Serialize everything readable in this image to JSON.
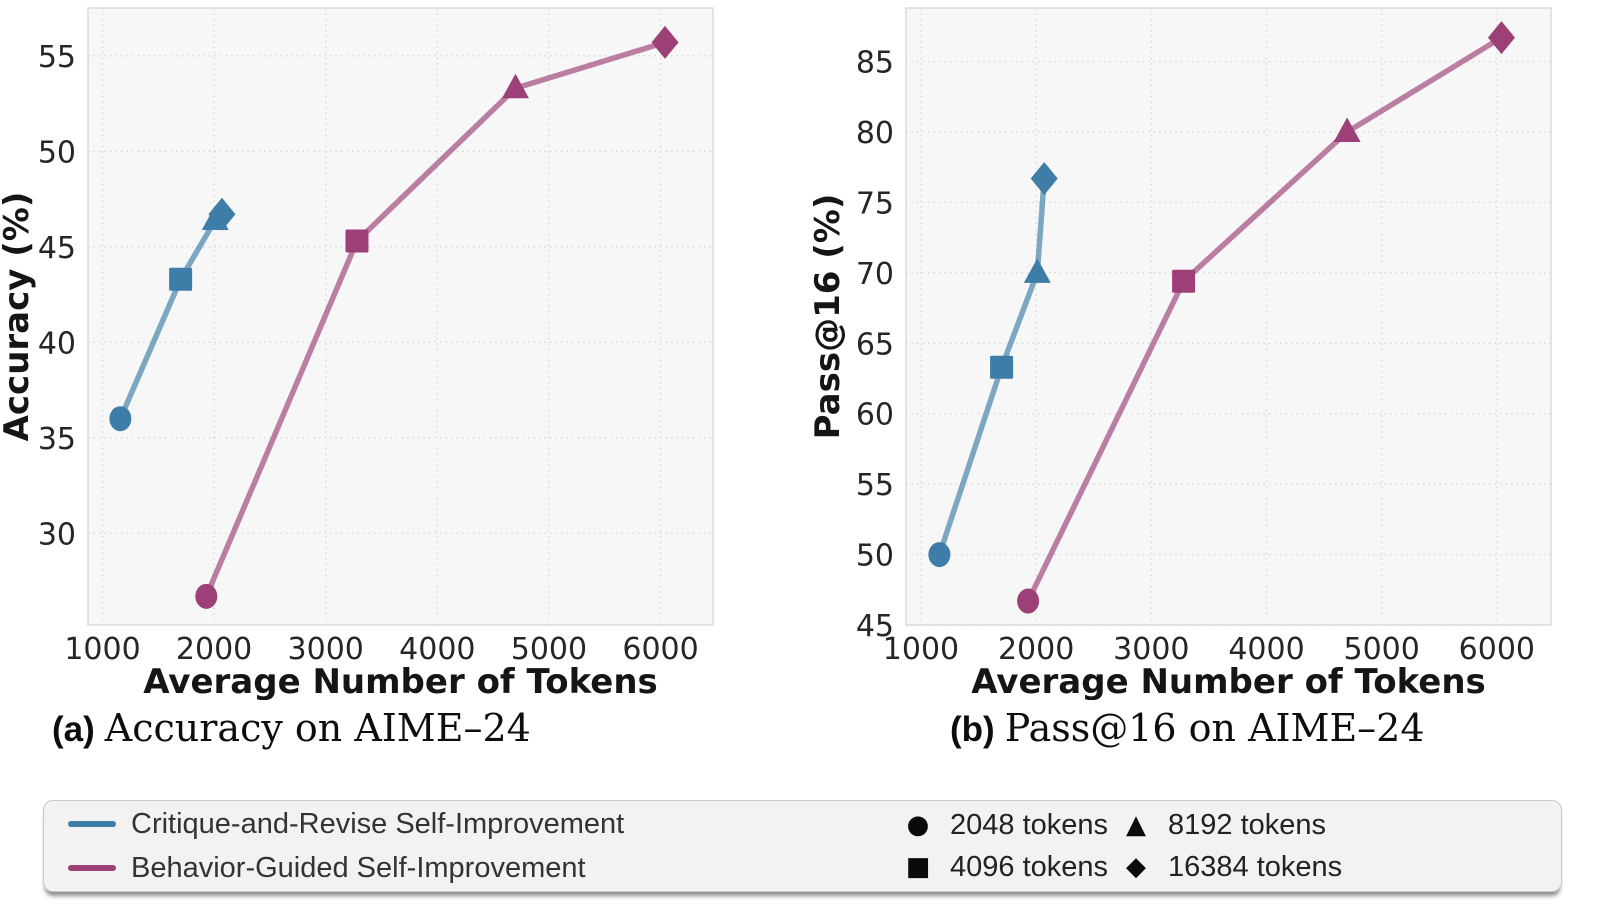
{
  "figure": {
    "panels": [
      {
        "caption_tag": "(a)",
        "caption_text": "Accuracy on AIME–24"
      },
      {
        "caption_tag": "(b)",
        "caption_text": "Pass@16 on AIME–24"
      }
    ]
  },
  "legend": {
    "series": [
      {
        "label": "Critique-and-Revise Self-Improvement",
        "color": "#3e7da7"
      },
      {
        "label": "Behavior-Guided Self-Improvement",
        "color": "#9d4077"
      }
    ],
    "markers": [
      {
        "shape": "circle",
        "label": "2048 tokens"
      },
      {
        "shape": "square",
        "label": "4096 tokens"
      },
      {
        "shape": "triangle",
        "label": "8192 tokens"
      },
      {
        "shape": "diamond",
        "label": "16384 tokens"
      }
    ]
  },
  "chart_data": [
    {
      "type": "line",
      "title": "(a) Accuracy on AIME–24",
      "xlabel": "Average Number of Tokens",
      "ylabel": "Accuracy (%)",
      "xlim": [
        870,
        6470
      ],
      "ylim": [
        25.2,
        57.5
      ],
      "xticks": [
        1000,
        2000,
        3000,
        4000,
        5000,
        6000
      ],
      "yticks": [
        30,
        35,
        40,
        45,
        50,
        55
      ],
      "grid": true,
      "legend_position": "bottom",
      "series": [
        {
          "name": "Critique-and-Revise Self-Improvement",
          "color": "#3e7da7",
          "points": [
            {
              "x": 1160,
              "y": 36.0,
              "marker": "circle",
              "tokens": 2048
            },
            {
              "x": 1700,
              "y": 43.3,
              "marker": "square",
              "tokens": 4096
            },
            {
              "x": 2010,
              "y": 46.4,
              "marker": "triangle",
              "tokens": 8192
            },
            {
              "x": 2070,
              "y": 46.7,
              "marker": "diamond",
              "tokens": 16384
            }
          ]
        },
        {
          "name": "Behavior-Guided Self-Improvement",
          "color": "#9d4077",
          "points": [
            {
              "x": 1930,
              "y": 26.7,
              "marker": "circle",
              "tokens": 2048
            },
            {
              "x": 3280,
              "y": 45.3,
              "marker": "square",
              "tokens": 4096
            },
            {
              "x": 4700,
              "y": 53.3,
              "marker": "triangle",
              "tokens": 8192
            },
            {
              "x": 6040,
              "y": 55.7,
              "marker": "diamond",
              "tokens": 16384
            }
          ]
        }
      ]
    },
    {
      "type": "line",
      "title": "(b) Pass@16 on AIME–24",
      "xlabel": "Average Number of Tokens",
      "ylabel": "Pass@16 (%)",
      "xlim": [
        870,
        6470
      ],
      "ylim": [
        45,
        88.8
      ],
      "xticks": [
        1000,
        2000,
        3000,
        4000,
        5000,
        6000
      ],
      "yticks": [
        45,
        50,
        55,
        60,
        65,
        70,
        75,
        80,
        85
      ],
      "grid": true,
      "legend_position": "bottom",
      "series": [
        {
          "name": "Critique-and-Revise Self-Improvement",
          "color": "#3e7da7",
          "points": [
            {
              "x": 1160,
              "y": 50.0,
              "marker": "circle",
              "tokens": 2048
            },
            {
              "x": 1700,
              "y": 63.3,
              "marker": "square",
              "tokens": 4096
            },
            {
              "x": 2010,
              "y": 70.0,
              "marker": "triangle",
              "tokens": 8192
            },
            {
              "x": 2070,
              "y": 76.7,
              "marker": "diamond",
              "tokens": 16384
            }
          ]
        },
        {
          "name": "Behavior-Guided Self-Improvement",
          "color": "#9d4077",
          "points": [
            {
              "x": 1930,
              "y": 46.7,
              "marker": "circle",
              "tokens": 2048
            },
            {
              "x": 3280,
              "y": 69.4,
              "marker": "square",
              "tokens": 4096
            },
            {
              "x": 4700,
              "y": 80.0,
              "marker": "triangle",
              "tokens": 8192
            },
            {
              "x": 6040,
              "y": 86.7,
              "marker": "diamond",
              "tokens": 16384
            }
          ]
        }
      ]
    }
  ]
}
